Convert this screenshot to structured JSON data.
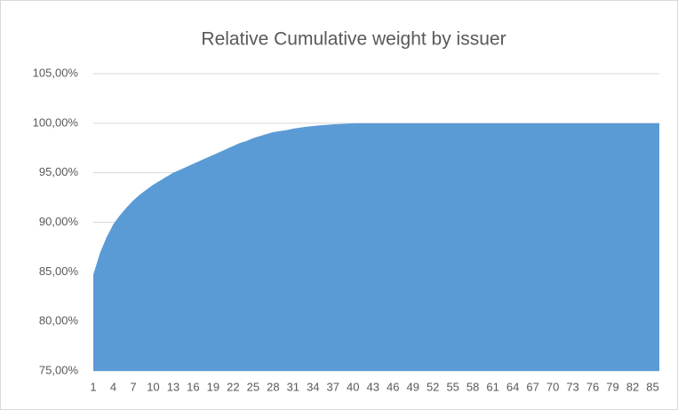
{
  "chart_data": {
    "type": "area",
    "title": "Relative Cumulative weight by issuer",
    "categories": [
      1,
      null,
      null,
      4,
      null,
      null,
      7,
      null,
      null,
      10,
      null,
      null,
      13,
      null,
      null,
      16,
      null,
      null,
      19,
      null,
      null,
      22,
      null,
      null,
      25,
      null,
      null,
      28,
      null,
      null,
      31,
      null,
      null,
      34,
      null,
      null,
      37,
      null,
      null,
      40,
      null,
      null,
      43,
      null,
      null,
      46,
      null,
      null,
      49,
      null,
      null,
      52,
      null,
      null,
      55,
      null,
      null,
      58,
      null,
      null,
      61,
      null,
      null,
      64,
      null,
      null,
      67,
      null,
      null,
      70,
      null,
      null,
      73,
      null,
      null,
      76,
      null,
      null,
      79,
      null,
      null,
      82,
      null,
      null,
      85,
      null
    ],
    "values": [
      84.7,
      86.9,
      88.5,
      89.8,
      90.7,
      91.5,
      92.2,
      92.8,
      93.3,
      93.8,
      94.2,
      94.6,
      95.0,
      95.3,
      95.6,
      95.9,
      96.2,
      96.5,
      96.8,
      97.1,
      97.4,
      97.7,
      98.0,
      98.2,
      98.5,
      98.7,
      98.9,
      99.1,
      99.2,
      99.3,
      99.45,
      99.55,
      99.65,
      99.72,
      99.78,
      99.83,
      99.88,
      99.92,
      99.95,
      99.98,
      100,
      100,
      100,
      100,
      100,
      100,
      100,
      100,
      100,
      100,
      100,
      100,
      100,
      100,
      100,
      100,
      100,
      100,
      100,
      100,
      100,
      100,
      100,
      100,
      100,
      100,
      100,
      100,
      100,
      100,
      100,
      100,
      100,
      100,
      100,
      100,
      100,
      100,
      100,
      100,
      100,
      100,
      100,
      100,
      100,
      100
    ],
    "color": "#5b9bd5",
    "ylim": [
      75,
      105
    ],
    "yticks": [
      {
        "value": 75,
        "label": "75,00%"
      },
      {
        "value": 80,
        "label": "80,00%"
      },
      {
        "value": 85,
        "label": "85,00%"
      },
      {
        "value": 90,
        "label": "90,00%"
      },
      {
        "value": 95,
        "label": "95,00%"
      },
      {
        "value": 100,
        "label": "100,00%"
      },
      {
        "value": 105,
        "label": "105,00%"
      }
    ],
    "grid": true
  }
}
